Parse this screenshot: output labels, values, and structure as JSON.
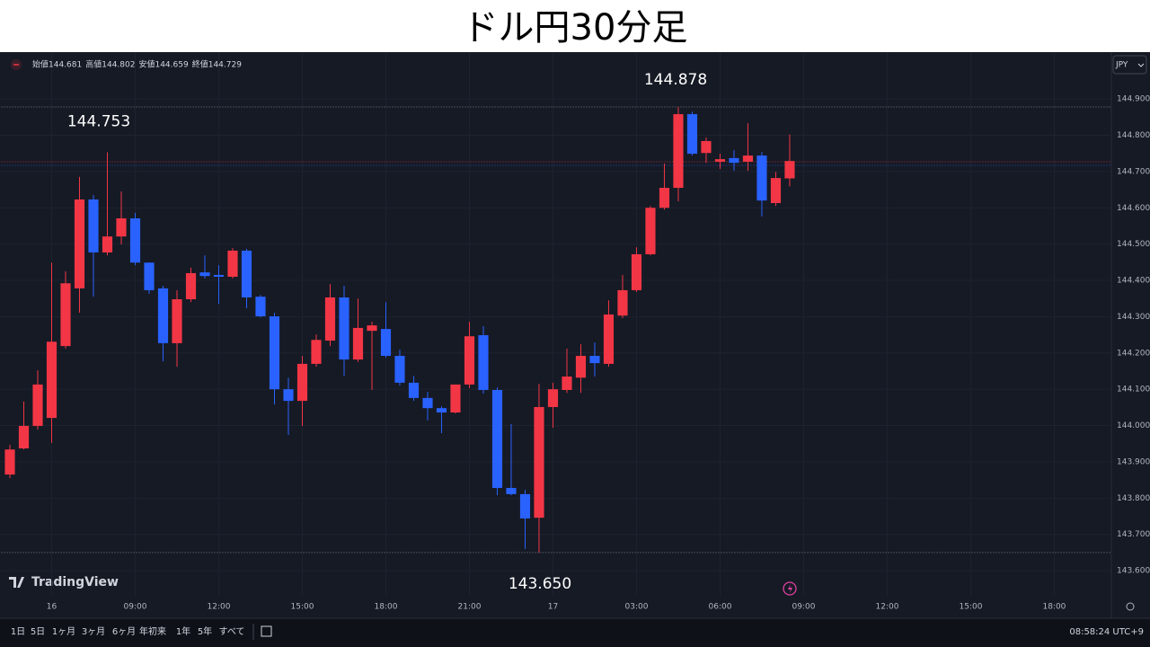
{
  "title": "ドル円30分足",
  "chart_data": {
    "type": "candlestick",
    "ohlc_header": [
      {
        "label": "始値",
        "value": 144.681
      },
      {
        "label": "高値",
        "value": 144.802
      },
      {
        "label": "安値",
        "value": 144.659
      },
      {
        "label": "終値",
        "value": 144.729
      }
    ],
    "currency": "JPY",
    "open": [
      143.865,
      143.937,
      143.999,
      144.021,
      144.219,
      144.378,
      144.623,
      144.477,
      144.521,
      144.571,
      144.449,
      144.378,
      144.227,
      144.348,
      144.422,
      144.415,
      144.41,
      144.482,
      144.355,
      144.301,
      144.1,
      144.068,
      144.17,
      144.234,
      144.353,
      144.182,
      144.261,
      144.266,
      144.192,
      144.118,
      144.076,
      144.048,
      144.036,
      144.113,
      144.249,
      144.098,
      143.828,
      143.811,
      143.746,
      144.051,
      144.098,
      144.132,
      144.192,
      144.17,
      144.303,
      144.373,
      144.472,
      144.6,
      144.655,
      144.858,
      144.751,
      144.727,
      144.737,
      144.727,
      144.744,
      144.613,
      144.681
    ],
    "high": [
      143.947,
      144.066,
      144.152,
      144.449,
      144.425,
      144.685,
      144.635,
      144.753,
      144.645,
      144.586,
      144.449,
      144.385,
      144.373,
      144.435,
      144.469,
      144.442,
      144.489,
      144.487,
      144.36,
      144.311,
      144.132,
      144.192,
      144.251,
      144.39,
      144.385,
      144.35,
      144.286,
      144.34,
      144.209,
      144.137,
      144.093,
      144.053,
      144.113,
      144.286,
      144.274,
      144.105,
      144.004,
      143.823,
      144.115,
      144.118,
      144.212,
      144.224,
      144.229,
      144.345,
      144.415,
      144.491,
      144.605,
      144.722,
      144.878,
      144.865,
      144.794,
      144.749,
      144.759,
      144.833,
      144.754,
      144.699,
      144.802
    ],
    "low": [
      143.855,
      143.934,
      143.989,
      143.952,
      144.212,
      144.311,
      144.355,
      144.469,
      144.499,
      144.442,
      144.363,
      144.177,
      144.162,
      144.34,
      144.405,
      144.335,
      144.405,
      144.323,
      144.298,
      144.058,
      143.974,
      143.999,
      144.162,
      144.219,
      144.137,
      144.175,
      144.098,
      144.187,
      144.11,
      144.068,
      144.014,
      143.979,
      144.033,
      144.103,
      144.088,
      143.808,
      143.808,
      143.66,
      143.65,
      143.994,
      144.09,
      144.09,
      144.135,
      144.162,
      144.296,
      144.368,
      144.469,
      144.595,
      144.618,
      144.744,
      144.724,
      144.707,
      144.702,
      144.702,
      144.576,
      144.605,
      144.659
    ],
    "close": [
      143.934,
      143.999,
      144.113,
      144.231,
      144.392,
      144.623,
      144.477,
      144.521,
      144.571,
      144.449,
      144.373,
      144.227,
      144.348,
      144.42,
      144.412,
      144.41,
      144.482,
      144.353,
      144.301,
      144.1,
      144.068,
      144.17,
      144.236,
      144.353,
      144.182,
      144.269,
      144.276,
      144.192,
      144.118,
      144.076,
      144.048,
      144.036,
      144.113,
      144.246,
      144.098,
      143.828,
      143.811,
      143.744,
      144.051,
      144.1,
      144.135,
      144.192,
      144.172,
      144.306,
      144.373,
      144.472,
      144.6,
      144.655,
      144.858,
      144.749,
      144.784,
      144.734,
      144.724,
      144.744,
      144.62,
      144.682,
      144.729
    ],
    "up_color": "#f23645",
    "down_color": "#2962ff",
    "xlim": [
      -0.71,
      79.1
    ],
    "xticks": [
      {
        "value": 3,
        "label": "16"
      },
      {
        "value": 9,
        "label": "09:00"
      },
      {
        "value": 15,
        "label": "12:00"
      },
      {
        "value": 21,
        "label": "15:00"
      },
      {
        "value": 27,
        "label": "18:00"
      },
      {
        "value": 33,
        "label": "21:00"
      },
      {
        "value": 39,
        "label": "17"
      },
      {
        "value": 45,
        "label": "03:00"
      },
      {
        "value": 51,
        "label": "06:00"
      },
      {
        "value": 57,
        "label": "09:00"
      },
      {
        "value": 63,
        "label": "12:00"
      },
      {
        "value": 69,
        "label": "15:00"
      },
      {
        "value": 75,
        "label": "18:00"
      }
    ],
    "ylim": [
      143.469,
      145.029
    ],
    "yticks": [
      {
        "value": 144.9,
        "label": "144.900"
      },
      {
        "value": 144.8,
        "label": "144.800"
      },
      {
        "value": 144.7,
        "label": "144.700"
      },
      {
        "value": 144.6,
        "label": "144.600"
      },
      {
        "value": 144.5,
        "label": "144.500"
      },
      {
        "value": 144.4,
        "label": "144.400"
      },
      {
        "value": 144.3,
        "label": "144.300"
      },
      {
        "value": 144.2,
        "label": "144.200"
      },
      {
        "value": 144.1,
        "label": "144.100"
      },
      {
        "value": 144.0,
        "label": "144.000"
      },
      {
        "value": 143.9,
        "label": "143.900"
      },
      {
        "value": 143.8,
        "label": "143.800"
      },
      {
        "value": 143.7,
        "label": "143.700"
      },
      {
        "value": 143.6,
        "label": "143.600"
      }
    ],
    "grid": true,
    "annotations": [
      {
        "value": 144.753,
        "label": "144.753"
      },
      {
        "value": 144.878,
        "label": "144.878"
      },
      {
        "value": 143.65,
        "label": "143.650"
      }
    ]
  },
  "ui": {
    "brand": "TradingView",
    "ranges": [
      "1日",
      "5日",
      "1ヶ月",
      "3ヶ月",
      "6ヶ月",
      "年初来",
      "1年",
      "5年",
      "すべて"
    ],
    "clock": "08:58:24 UTC+9"
  }
}
